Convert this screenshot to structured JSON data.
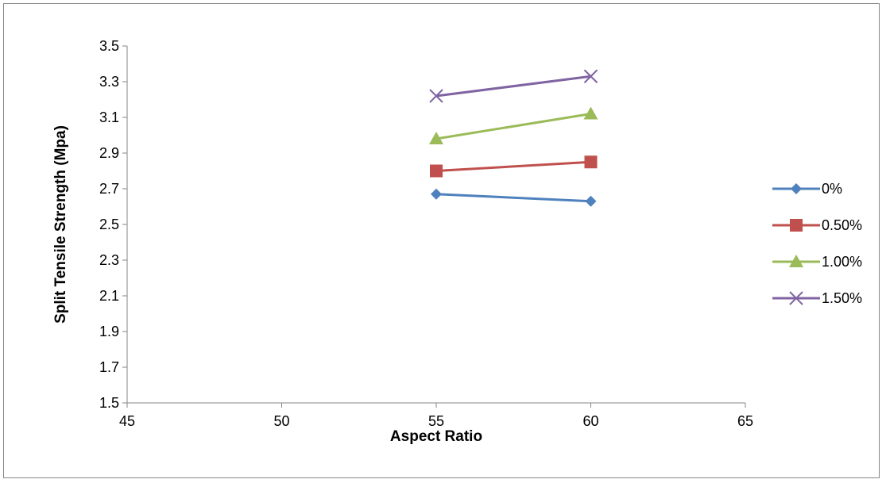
{
  "chart_data": {
    "type": "scatter",
    "title": "",
    "xlabel": "Aspect Ratio",
    "ylabel": "Split Tensile Strength (Mpa)",
    "xlim": [
      45,
      65
    ],
    "ylim": [
      1.5,
      3.5
    ],
    "x_ticks": [
      "45",
      "50",
      "55",
      "60",
      "65"
    ],
    "y_ticks": [
      "1.5",
      "1.7",
      "1.9",
      "2.1",
      "2.3",
      "2.5",
      "2.7",
      "2.9",
      "3.1",
      "3.3",
      "3.5"
    ],
    "grid": false,
    "legend_position": "right",
    "series": [
      {
        "name": "0%",
        "color": "#4F81BD",
        "marker": "diamond",
        "x": [
          55,
          60
        ],
        "y": [
          2.67,
          2.63
        ]
      },
      {
        "name": "0.50%",
        "color": "#C0504D",
        "marker": "square",
        "x": [
          55,
          60
        ],
        "y": [
          2.8,
          2.85
        ]
      },
      {
        "name": "1.00%",
        "color": "#9BBB59",
        "marker": "triangle",
        "x": [
          55,
          60
        ],
        "y": [
          2.98,
          3.12
        ]
      },
      {
        "name": "1.50%",
        "color": "#8064A2",
        "marker": "x",
        "x": [
          55,
          60
        ],
        "y": [
          3.22,
          3.33
        ]
      }
    ]
  }
}
